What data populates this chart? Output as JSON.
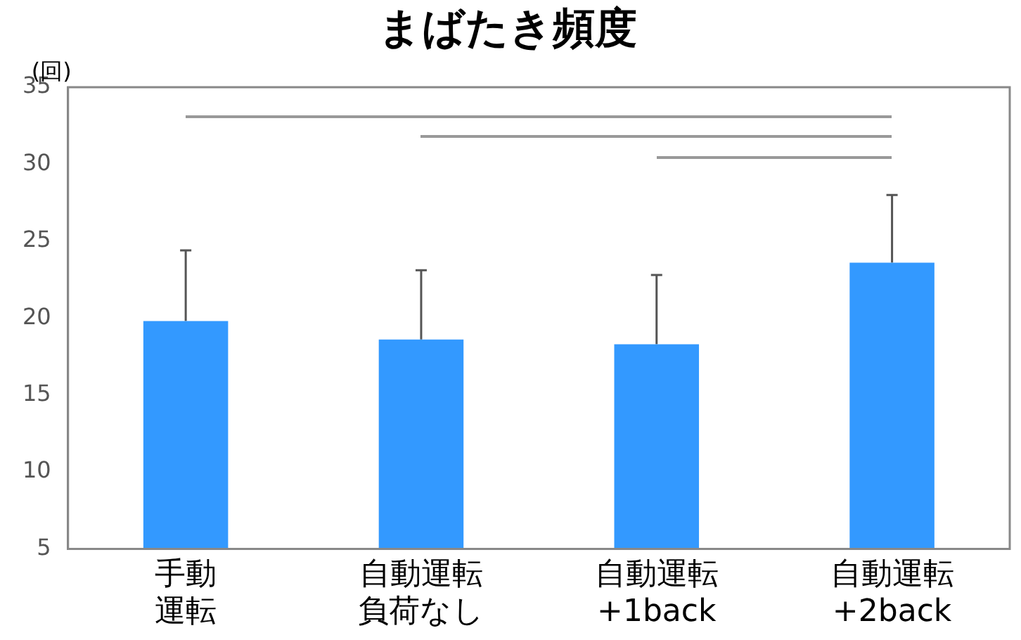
{
  "chart_data": {
    "type": "bar",
    "title": "まばたき頻度",
    "ylabel": "(回)",
    "categories": [
      "手動運転",
      "自動運転負荷なし",
      "自動運転+1back",
      "自動運転+2back"
    ],
    "values": [
      19.8,
      18.6,
      18.3,
      23.6
    ],
    "errors": [
      [
        19.8,
        24.4
      ],
      [
        18.6,
        23.1
      ],
      [
        18.3,
        22.8
      ],
      [
        23.6,
        28.0
      ]
    ],
    "color": "#3399ff",
    "ylim": [
      5,
      35
    ],
    "yticks": [
      5,
      10,
      15,
      20,
      25,
      30,
      35
    ],
    "grid": false
  }
}
